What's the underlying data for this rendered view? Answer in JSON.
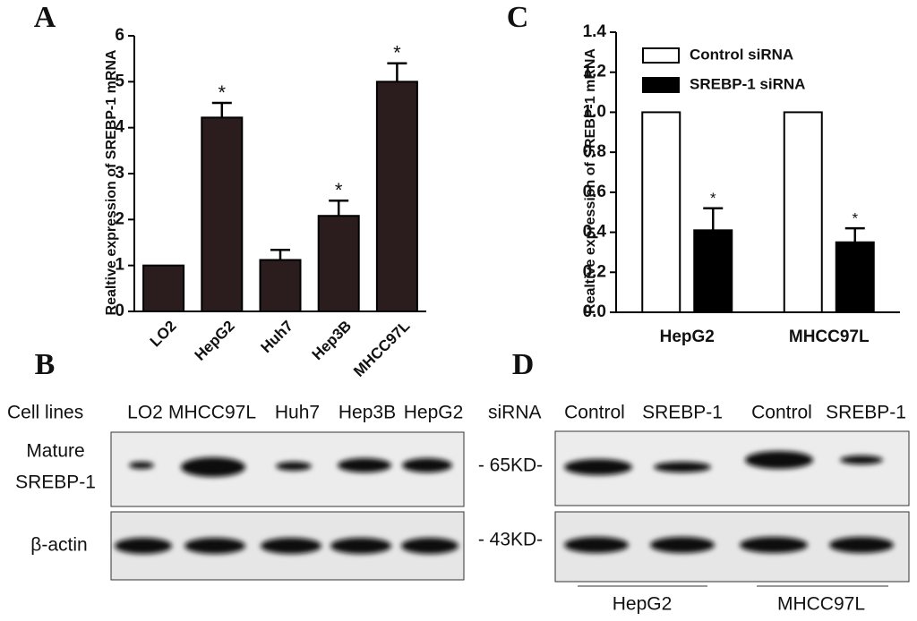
{
  "chart_data": [
    {
      "type": "bar",
      "panel": "A",
      "title": null,
      "ylabel": "Realtive expression of SREBP-1 mRNA",
      "categories": [
        "LO2",
        "HepG2",
        "Huh7",
        "Hep3B",
        "MHCC97L"
      ],
      "series": [
        {
          "name": null,
          "color": "#2b1d1d",
          "values": [
            1,
            4.22,
            1.12,
            2.08,
            5.0
          ],
          "errors": [
            0,
            0.32,
            0.22,
            0.33,
            0.4
          ],
          "significance": [
            null,
            "*",
            null,
            "*",
            "*"
          ]
        }
      ],
      "ylim": [
        0,
        6
      ],
      "yticks": [
        0,
        1,
        2,
        3,
        4,
        5,
        6
      ]
    },
    {
      "type": "bar",
      "panel": "C",
      "title": null,
      "ylabel": "Realtive expression of SREBP-1 mRNA",
      "categories": [
        "HepG2",
        "MHCC97L"
      ],
      "series": [
        {
          "name": "Control siRNA",
          "color": "#ffffff",
          "values": [
            1,
            1
          ]
        },
        {
          "name": "SREBP-1 siRNA",
          "color": "#000000",
          "values": [
            0.41,
            0.35
          ],
          "errors": [
            0.11,
            0.07
          ],
          "significance": [
            "*",
            "*"
          ]
        }
      ],
      "ylim": [
        0,
        1.4
      ],
      "yticks": [
        {
          "value": 0,
          "label": "0.0"
        },
        0.2,
        0.4,
        0.6,
        0.8,
        {
          "value": 1,
          "label": "1.0"
        },
        1.2,
        1.4
      ]
    }
  ],
  "blot_b": {
    "panel": "B",
    "row_header": "Cell lines",
    "lanes": [
      "LO2",
      "MHCC97L",
      "Huh7",
      "Hep3B",
      "HepG2"
    ],
    "rows": [
      [
        "Mature",
        "SREBP-1"
      ],
      [
        "β-actin"
      ]
    ]
  },
  "blot_d": {
    "panel": "D",
    "row_header": "siRNA",
    "lanes": [
      "Control",
      "SREBP-1",
      "Control",
      "SREBP-1"
    ],
    "markers": [
      "- 65KD-",
      "- 43KD-"
    ],
    "groups": [
      "HepG2",
      "MHCC97L"
    ]
  }
}
